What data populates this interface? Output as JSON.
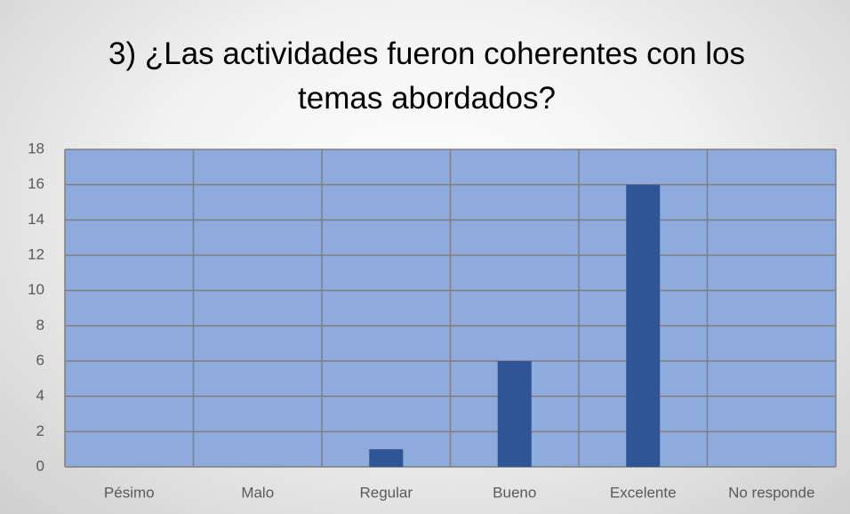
{
  "chart_data": {
    "type": "bar",
    "title": "3) ¿Las actividades fueron coherentes con los temas abordados?",
    "categories": [
      "Pésimo",
      "Malo",
      "Regular",
      "Bueno",
      "Excelente",
      "No responde"
    ],
    "values": [
      0,
      0,
      1,
      6,
      16,
      0
    ],
    "color": "#2f5597",
    "ylim": [
      0,
      18
    ],
    "yticks": [
      0,
      2,
      4,
      6,
      8,
      10,
      12,
      14,
      16,
      18
    ],
    "grid": true
  }
}
